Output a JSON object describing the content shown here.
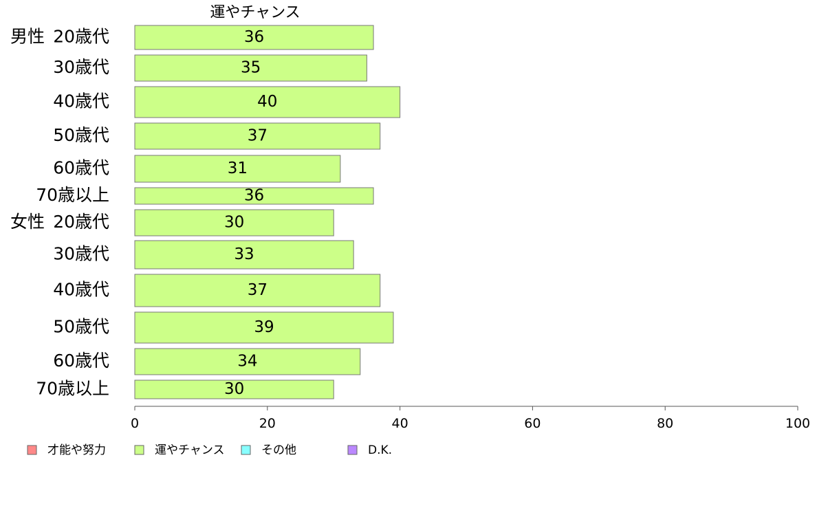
{
  "chart_data": {
    "type": "bar",
    "orientation": "horizontal",
    "title": "運やチャンス",
    "xlim": [
      0,
      100
    ],
    "x_ticks": [
      "0",
      "20",
      "40",
      "60",
      "80",
      "100"
    ],
    "groups": [
      {
        "name": "男性",
        "categories": [
          "20歳代",
          "30歳代",
          "40歳代",
          "50歳代",
          "60歳代",
          "70歳以上"
        ],
        "values": [
          36,
          35,
          40,
          37,
          31,
          36
        ]
      },
      {
        "name": "女性",
        "categories": [
          "20歳代",
          "30歳代",
          "40歳代",
          "50歳代",
          "60歳代",
          "70歳以上"
        ],
        "values": [
          30,
          33,
          37,
          39,
          34,
          30
        ]
      }
    ],
    "series": [
      {
        "name": "運やチャンス",
        "color": "#ccff88"
      }
    ],
    "legend": [
      {
        "label": "才能や努力",
        "color": "#ff8888"
      },
      {
        "label": "運やチャンス",
        "color": "#ccff88"
      },
      {
        "label": "その他",
        "color": "#88ffff"
      },
      {
        "label": "D.K.",
        "color": "#bb88ff"
      }
    ],
    "legend_position": "bottom-left",
    "grid": false
  }
}
